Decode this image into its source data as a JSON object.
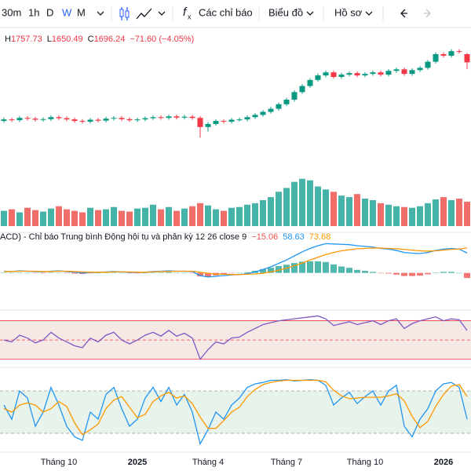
{
  "toolbar": {
    "intervals": [
      "30m",
      "1h",
      "D",
      "W",
      "M"
    ],
    "selected_interval": 3,
    "indicators": "Các chỉ báo",
    "chart_menu": "Biểu đồ",
    "profile_menu": "Hồ sơ"
  },
  "chart_data": [
    {
      "type": "candlestick",
      "up_color": "#089981",
      "down_color": "#f23645",
      "ylim": [
        1150,
        1900
      ],
      "ohlc_legend": [
        {
          "label": "H",
          "value": 1757.73
        },
        {
          "label": "L",
          "value": 1650.49
        },
        {
          "label": "C",
          "value": 1696.24
        }
      ],
      "change": "−71.60 (−4.05%)",
      "open": [
        1310,
        1320,
        1315,
        1330,
        1325,
        1318,
        1322,
        1335,
        1328,
        1320,
        1310,
        1305,
        1318,
        1312,
        1325,
        1330,
        1322,
        1315,
        1320,
        1328,
        1335,
        1330,
        1340,
        1332,
        1338,
        1330,
        1270,
        1290,
        1310,
        1305,
        1318,
        1320,
        1335,
        1350,
        1370,
        1390,
        1420,
        1450,
        1500,
        1540,
        1580,
        1610,
        1630,
        1600,
        1615,
        1625,
        1610,
        1620,
        1630,
        1615,
        1640,
        1650,
        1620,
        1645,
        1660,
        1700,
        1750,
        1740,
        1770,
        1750
      ],
      "high": [
        1332,
        1332,
        1342,
        1342,
        1337,
        1334,
        1347,
        1347,
        1340,
        1332,
        1322,
        1330,
        1330,
        1337,
        1342,
        1342,
        1334,
        1332,
        1340,
        1347,
        1347,
        1352,
        1352,
        1350,
        1350,
        1342,
        1302,
        1322,
        1322,
        1330,
        1332,
        1347,
        1362,
        1382,
        1402,
        1432,
        1462,
        1512,
        1552,
        1592,
        1622,
        1642,
        1642,
        1627,
        1637,
        1637,
        1632,
        1642,
        1642,
        1652,
        1662,
        1662,
        1657,
        1672,
        1712,
        1762,
        1762,
        1782,
        1782,
        1757.73
      ],
      "low": [
        1298,
        1303,
        1303,
        1313,
        1306,
        1306,
        1310,
        1316,
        1308,
        1298,
        1293,
        1293,
        1300,
        1300,
        1313,
        1310,
        1303,
        1303,
        1308,
        1316,
        1318,
        1318,
        1320,
        1320,
        1318,
        1200,
        1240,
        1278,
        1293,
        1293,
        1306,
        1308,
        1323,
        1338,
        1358,
        1378,
        1408,
        1438,
        1488,
        1528,
        1568,
        1598,
        1588,
        1588,
        1603,
        1598,
        1598,
        1608,
        1603,
        1603,
        1628,
        1608,
        1608,
        1633,
        1648,
        1688,
        1728,
        1728,
        1755,
        1650.49
      ],
      "close": [
        1320,
        1315,
        1330,
        1325,
        1318,
        1322,
        1335,
        1328,
        1320,
        1310,
        1305,
        1318,
        1312,
        1325,
        1330,
        1322,
        1315,
        1320,
        1328,
        1335,
        1330,
        1340,
        1332,
        1338,
        1330,
        1270,
        1290,
        1310,
        1305,
        1318,
        1320,
        1335,
        1350,
        1370,
        1390,
        1420,
        1450,
        1500,
        1540,
        1580,
        1610,
        1630,
        1600,
        1615,
        1625,
        1610,
        1620,
        1630,
        1615,
        1640,
        1650,
        1620,
        1645,
        1660,
        1700,
        1750,
        1740,
        1770,
        1767.84,
        1696.24
      ]
    },
    {
      "type": "bar",
      "up_color": "#26a69a",
      "down_color": "#ef5350",
      "ylim": [
        0,
        70
      ],
      "values": [
        20,
        22,
        18,
        24,
        21,
        19,
        23,
        26,
        22,
        20,
        18,
        24,
        21,
        22,
        25,
        20,
        19,
        23,
        24,
        28,
        22,
        25,
        20,
        23,
        26,
        30,
        27,
        22,
        20,
        24,
        25,
        28,
        30,
        34,
        38,
        45,
        50,
        58,
        62,
        60,
        52,
        48,
        45,
        40,
        38,
        42,
        36,
        34,
        30,
        28,
        26,
        25,
        24,
        26,
        30,
        35,
        38,
        34,
        36,
        32
      ]
    },
    {
      "type": "line",
      "title": "ACD) - Chỉ báo Trung bình Động hội tụ và phân kỳ 12 26 close 9",
      "ylim": [
        -40,
        110
      ],
      "series": [
        {
          "style": "histogram",
          "color": "#26a69a",
          "negative_color": "#ef5350",
          "last_label": "−15.06",
          "values": [
            1,
            0,
            1,
            0,
            -1,
            -1,
            1,
            1,
            -1,
            -2,
            -3,
            -1,
            0,
            1,
            1,
            0,
            -1,
            -1,
            0,
            1,
            1,
            2,
            0,
            0,
            -1,
            -10,
            -11,
            -7,
            -4,
            -1,
            0,
            2,
            6,
            11,
            15,
            20,
            24,
            29,
            33,
            34,
            34,
            32,
            25,
            19,
            15,
            9,
            6,
            3,
            -1,
            -2,
            -5,
            -9,
            -9,
            -8,
            -4,
            1,
            3,
            3,
            0,
            -15.06
          ]
        },
        {
          "color": "#2196f3",
          "last_label": "58.63",
          "values": [
            5,
            4,
            6,
            5,
            4,
            3,
            5,
            6,
            4,
            2,
            0,
            1,
            2,
            3,
            4,
            3,
            2,
            1,
            2,
            4,
            5,
            6,
            5,
            5,
            4,
            -8,
            -12,
            -10,
            -8,
            -6,
            -5,
            -2,
            3,
            10,
            18,
            28,
            38,
            50,
            62,
            72,
            80,
            86,
            85,
            84,
            83,
            80,
            78,
            76,
            72,
            70,
            66,
            60,
            58,
            57,
            60,
            66,
            70,
            72,
            70,
            58.63
          ]
        },
        {
          "color": "#ff9800",
          "last_label": "73.68",
          "values": [
            4,
            4,
            5,
            5,
            5,
            4,
            4,
            5,
            5,
            4,
            3,
            2,
            2,
            2,
            3,
            3,
            3,
            2,
            2,
            3,
            4,
            4,
            5,
            5,
            5,
            2,
            -1,
            -3,
            -4,
            -5,
            -5,
            -4,
            -3,
            -1,
            3,
            8,
            14,
            21,
            29,
            38,
            46,
            54,
            60,
            65,
            68,
            71,
            72,
            73,
            73,
            72,
            71,
            69,
            67,
            65,
            64,
            65,
            67,
            69,
            70,
            73.68
          ]
        }
      ]
    },
    {
      "type": "line",
      "ylim": [
        24,
        77
      ],
      "hlines": [
        70,
        50,
        30
      ],
      "band_color": "#f5e9e6",
      "hline_color": "#f23645",
      "series": [
        {
          "color": "#7e57c2",
          "values": [
            50,
            48,
            55,
            52,
            47,
            50,
            58,
            52,
            48,
            44,
            42,
            52,
            48,
            55,
            58,
            50,
            46,
            50,
            55,
            58,
            54,
            60,
            54,
            57,
            52,
            30,
            40,
            48,
            46,
            52,
            53,
            58,
            62,
            66,
            68,
            70,
            71,
            72,
            73,
            74,
            75,
            72,
            65,
            67,
            69,
            66,
            68,
            70,
            66,
            70,
            72,
            62,
            67,
            70,
            72,
            74,
            70,
            72,
            71,
            60
          ]
        }
      ]
    },
    {
      "type": "line",
      "ylim": [
        0,
        100
      ],
      "hlines": [
        80,
        20
      ],
      "band_color": "#e8f3ec",
      "hline_color": "#9e9e9e",
      "categories": [
        null,
        null,
        null,
        null,
        null,
        null,
        null,
        "Tháng 10",
        null,
        null,
        null,
        null,
        null,
        null,
        null,
        null,
        null,
        "2025",
        null,
        null,
        null,
        null,
        null,
        null,
        null,
        null,
        "Tháng 4",
        null,
        null,
        null,
        null,
        null,
        null,
        null,
        null,
        null,
        "Tháng 7",
        null,
        null,
        null,
        null,
        null,
        null,
        null,
        null,
        null,
        "Tháng 10",
        null,
        null,
        null,
        null,
        null,
        null,
        null,
        null,
        null,
        "2026",
        null,
        null,
        null
      ],
      "series": [
        {
          "color": "#2196f3",
          "values": [
            60,
            40,
            80,
            70,
            30,
            50,
            85,
            60,
            30,
            15,
            10,
            50,
            40,
            75,
            85,
            55,
            30,
            40,
            70,
            85,
            65,
            85,
            60,
            75,
            50,
            5,
            25,
            50,
            40,
            60,
            70,
            85,
            90,
            92,
            95,
            95,
            96,
            94,
            95,
            96,
            95,
            88,
            60,
            70,
            78,
            62,
            72,
            80,
            60,
            80,
            88,
            30,
            15,
            40,
            55,
            80,
            90,
            92,
            85,
            40
          ]
        },
        {
          "color": "#ff9800",
          "values": [
            55,
            50,
            60,
            63,
            60,
            50,
            55,
            65,
            58,
            35,
            18,
            25,
            33,
            55,
            67,
            72,
            57,
            42,
            47,
            65,
            73,
            78,
            70,
            73,
            62,
            43,
            27,
            27,
            38,
            50,
            57,
            72,
            82,
            89,
            92,
            94,
            95,
            95,
            95,
            95,
            95,
            93,
            81,
            73,
            69,
            70,
            71,
            71,
            71,
            73,
            76,
            66,
            44,
            28,
            37,
            58,
            75,
            87,
            89,
            72
          ]
        }
      ]
    }
  ]
}
